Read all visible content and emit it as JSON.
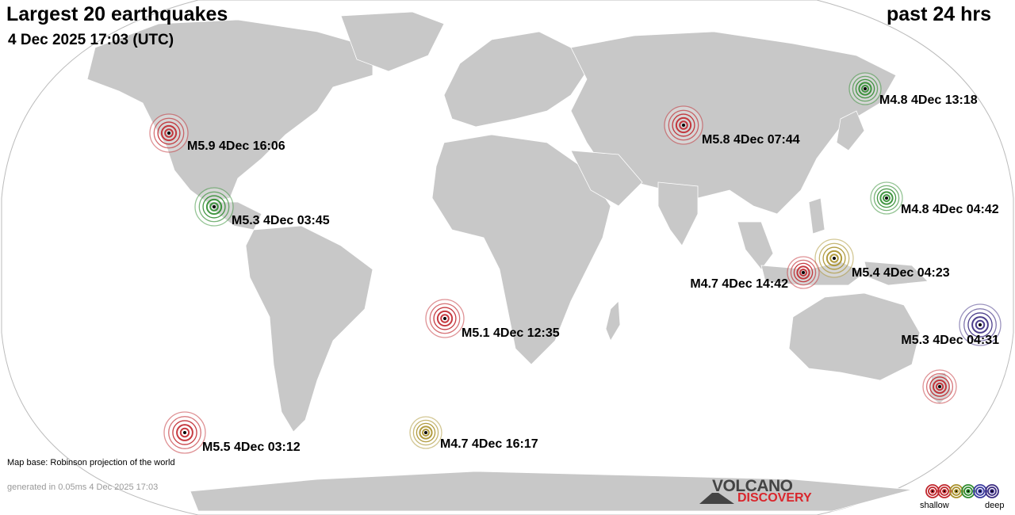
{
  "header": {
    "title": "Largest 20 earthquakes",
    "datetime": "4 Dec 2025 17:03 (UTC)",
    "period": "past 24 hrs"
  },
  "footer": {
    "map_base": "Map base: Robinson projection of the world",
    "generated": "generated in 0.05ms  4 Dec 2025 17:03"
  },
  "logo": {
    "line1": "VOLCANO",
    "line2": "DISCOVERY"
  },
  "legend": {
    "shallow_label": "shallow",
    "deep_label": "deep",
    "depth_colors": [
      "#c0262c",
      "#c0262c",
      "#a8902a",
      "#2e8b2e",
      "#3a3aa0",
      "#3a2a80"
    ]
  },
  "colors": {
    "ocean": "#ffffff",
    "land": "#c8c8c8",
    "border": "#ffffff",
    "outline": "#bbbbbb",
    "shallow": "#c0262c",
    "intermediate": "#a8902a",
    "mid": "#2e8b2e",
    "deep": "#3a2a80"
  },
  "earthquakes": [
    {
      "label": "M5.9  4Dec 16:06",
      "depth_class": "shallow",
      "region": "California"
    },
    {
      "label": "M5.3  4Dec 03:45",
      "depth_class": "mid",
      "region": "Central America"
    },
    {
      "label": "M5.8  4Dec 07:44",
      "depth_class": "shallow",
      "region": "Central Asia"
    },
    {
      "label": "M4.8  4Dec 13:18",
      "depth_class": "mid",
      "region": "Kuril Islands"
    },
    {
      "label": "M4.8  4Dec 04:42",
      "depth_class": "mid",
      "region": "Western Pacific"
    },
    {
      "label": "M5.4  4Dec 04:23",
      "depth_class": "intermediate",
      "region": "Indonesia"
    },
    {
      "label": "M4.7  4Dec 14:42",
      "depth_class": "shallow",
      "region": "Indonesia"
    },
    {
      "label": "M5.3  4Dec 04:31",
      "depth_class": "deep",
      "region": "Vanuatu"
    },
    {
      "label": "M5.1  4Dec 12:35",
      "depth_class": "shallow",
      "region": "South Atlantic"
    },
    {
      "label": "M5.5  4Dec 03:12",
      "depth_class": "shallow",
      "region": "South Pacific"
    },
    {
      "label": "M4.7  4Dec 16:17",
      "depth_class": "intermediate",
      "region": "Southern Ocean"
    },
    {
      "label": "",
      "depth_class": "shallow",
      "region": "New Zealand"
    }
  ]
}
